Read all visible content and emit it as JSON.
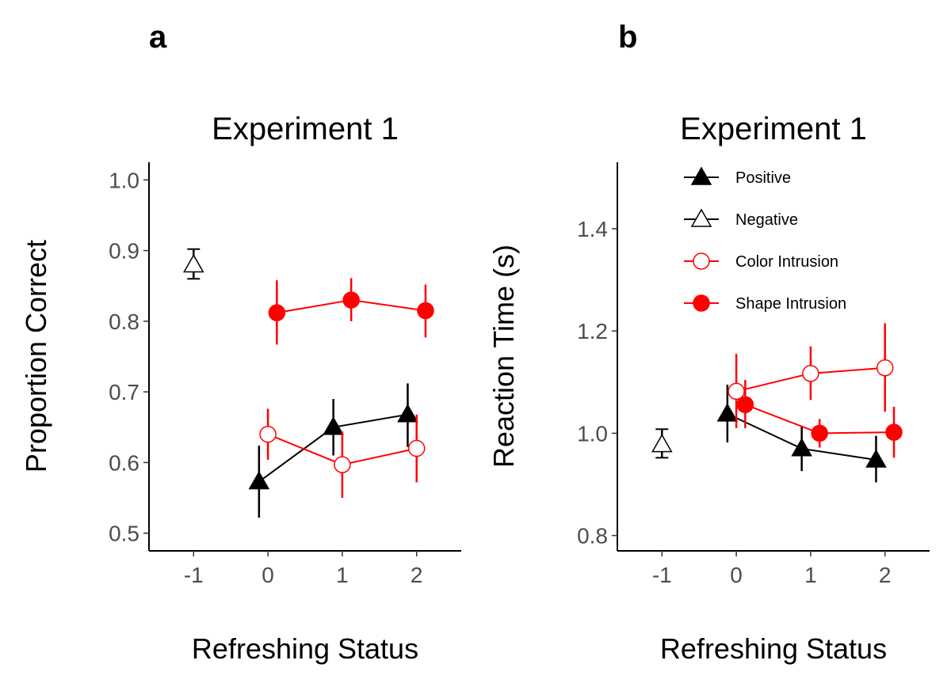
{
  "chart_data": [
    {
      "type": "line",
      "panel_label": "a",
      "title": "Experiment 1",
      "xlabel": "Refreshing Status",
      "ylabel": "Proportion Correct",
      "xlim": [
        -1.6,
        2.6
      ],
      "ylim": [
        0.475,
        1.025
      ],
      "x_ticks": [
        -1,
        0,
        1,
        2
      ],
      "x_tick_labels": [
        "-1",
        "0",
        "1",
        "2"
      ],
      "y_ticks": [
        0.5,
        0.6,
        0.7,
        0.8,
        0.9,
        1.0
      ],
      "y_tick_labels": [
        "0.5",
        "0.6",
        "0.7",
        "0.8",
        "0.9",
        "1.0"
      ],
      "grid": false,
      "series": [
        {
          "name": "Positive",
          "color": "#000000",
          "marker": "triangle",
          "filled": true,
          "points": [
            {
              "x": -0.12,
              "y": 0.573,
              "lo": 0.522,
              "hi": 0.624
            },
            {
              "x": 0.88,
              "y": 0.65,
              "lo": 0.61,
              "hi": 0.69
            },
            {
              "x": 1.88,
              "y": 0.668,
              "lo": 0.622,
              "hi": 0.712
            }
          ]
        },
        {
          "name": "Negative",
          "color": "#000000",
          "marker": "triangle",
          "filled": false,
          "points": [
            {
              "x": -1,
              "y": 0.88,
              "lo": 0.86,
              "hi": 0.902
            }
          ]
        },
        {
          "name": "Color Intrusion",
          "color": "#ff0000",
          "marker": "circle",
          "filled": false,
          "points": [
            {
              "x": 0,
              "y": 0.64,
              "lo": 0.604,
              "hi": 0.676
            },
            {
              "x": 1,
              "y": 0.597,
              "lo": 0.55,
              "hi": 0.644
            },
            {
              "x": 2,
              "y": 0.62,
              "lo": 0.572,
              "hi": 0.668
            }
          ]
        },
        {
          "name": "Shape Intrusion",
          "color": "#ff0000",
          "marker": "circle",
          "filled": true,
          "points": [
            {
              "x": 0.12,
              "y": 0.812,
              "lo": 0.767,
              "hi": 0.858
            },
            {
              "x": 1.12,
              "y": 0.83,
              "lo": 0.8,
              "hi": 0.861
            },
            {
              "x": 2.12,
              "y": 0.815,
              "lo": 0.777,
              "hi": 0.852
            }
          ]
        }
      ]
    },
    {
      "type": "line",
      "panel_label": "b",
      "title": "Experiment 1",
      "xlabel": "Refreshing Status",
      "ylabel": "Reaction Time (s)",
      "xlim": [
        -1.6,
        2.6
      ],
      "ylim": [
        0.77,
        1.53
      ],
      "x_ticks": [
        -1,
        0,
        1,
        2
      ],
      "x_tick_labels": [
        "-1",
        "0",
        "1",
        "2"
      ],
      "y_ticks": [
        0.8,
        1.0,
        1.2,
        1.4
      ],
      "y_tick_labels": [
        "0.8",
        "1.0",
        "1.2",
        "1.4"
      ],
      "grid": false,
      "legend": {
        "position": "top-right",
        "entries": [
          "Positive",
          "Negative",
          "Color Intrusion",
          "Shape Intrusion"
        ]
      },
      "series": [
        {
          "name": "Positive",
          "color": "#000000",
          "marker": "triangle",
          "filled": true,
          "points": [
            {
              "x": -0.12,
              "y": 1.038,
              "lo": 0.982,
              "hi": 1.095
            },
            {
              "x": 0.88,
              "y": 0.97,
              "lo": 0.926,
              "hi": 1.015
            },
            {
              "x": 1.88,
              "y": 0.948,
              "lo": 0.904,
              "hi": 0.995
            }
          ]
        },
        {
          "name": "Negative",
          "color": "#000000",
          "marker": "triangle",
          "filled": false,
          "points": [
            {
              "x": -1,
              "y": 0.978,
              "lo": 0.952,
              "hi": 1.008
            }
          ]
        },
        {
          "name": "Color Intrusion",
          "color": "#ff0000",
          "marker": "circle",
          "filled": false,
          "points": [
            {
              "x": 0,
              "y": 1.082,
              "lo": 1.01,
              "hi": 1.155
            },
            {
              "x": 1,
              "y": 1.117,
              "lo": 1.065,
              "hi": 1.17
            },
            {
              "x": 2,
              "y": 1.128,
              "lo": 1.042,
              "hi": 1.215
            }
          ]
        },
        {
          "name": "Shape Intrusion",
          "color": "#ff0000",
          "marker": "circle",
          "filled": true,
          "points": [
            {
              "x": 0.12,
              "y": 1.056,
              "lo": 1.01,
              "hi": 1.104
            },
            {
              "x": 1.12,
              "y": 1.0,
              "lo": 0.972,
              "hi": 1.028
            },
            {
              "x": 2.12,
              "y": 1.002,
              "lo": 0.952,
              "hi": 1.052
            }
          ]
        }
      ]
    }
  ]
}
